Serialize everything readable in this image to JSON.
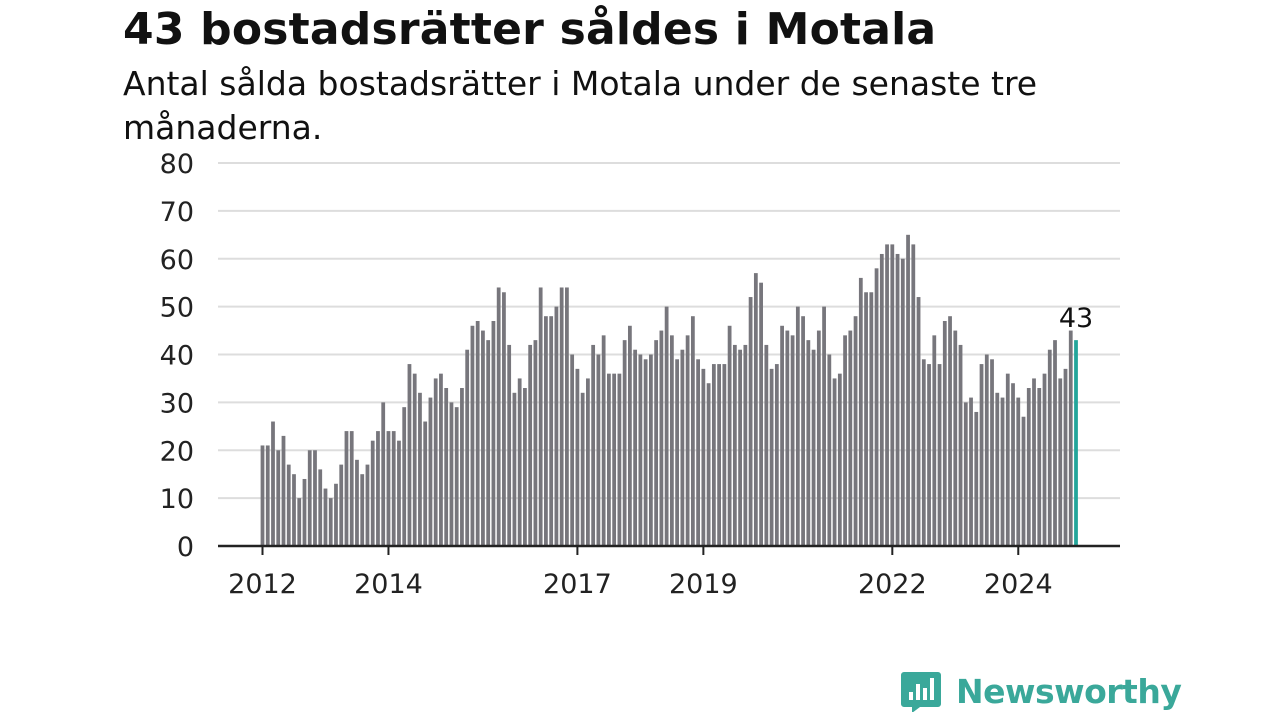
{
  "title": "43 bostadsrätter såldes i Motala",
  "subtitle": "Antal sålda bostadsrätter i Motala under de senaste tre månaderna.",
  "brand": {
    "name": "Newsworthy",
    "icon": "newsworthy-logo-icon",
    "color": "#3aa89a"
  },
  "chart_data": {
    "type": "bar",
    "title": "43 bostadsrätter såldes i Motala",
    "xlabel": "",
    "ylabel": "",
    "ylim": [
      0,
      80
    ],
    "yticks": [
      0,
      10,
      20,
      30,
      40,
      50,
      60,
      70,
      80
    ],
    "xtick_labels": [
      "2012",
      "2014",
      "2017",
      "2019",
      "2022",
      "2024"
    ],
    "grid": true,
    "colors": {
      "bars": "#77767c",
      "highlight": "#23a59a",
      "grid": "#dddddd",
      "axis": "#222222"
    },
    "highlight_label": "43",
    "series": [
      {
        "values": [
          21,
          21,
          26,
          20,
          23,
          17,
          15,
          10,
          14,
          20,
          20,
          16,
          12,
          10,
          13,
          17,
          24,
          24,
          18,
          15,
          17,
          22,
          24,
          30,
          24,
          24,
          22,
          29,
          38,
          36,
          32,
          26,
          31,
          35,
          36,
          33,
          30,
          29,
          33,
          41,
          46,
          47,
          45,
          43,
          47,
          54,
          53,
          42,
          32,
          35,
          33,
          42,
          43,
          54,
          48,
          48,
          50,
          54,
          54,
          40,
          37,
          32,
          35,
          42,
          40,
          44,
          36,
          36,
          36,
          43,
          46,
          41,
          40,
          39,
          40,
          43,
          45,
          50,
          44,
          39,
          41,
          44,
          48,
          39,
          37,
          34,
          38,
          38,
          38,
          46,
          42,
          41,
          42,
          52,
          57,
          55,
          42,
          37,
          38,
          46,
          45,
          44,
          50,
          48,
          43,
          41,
          45,
          50,
          40,
          35,
          36,
          44,
          45,
          48,
          56,
          53,
          53,
          58,
          61,
          63,
          63,
          61,
          60,
          65,
          63,
          52,
          39,
          38,
          44,
          38,
          47,
          48,
          45,
          42,
          30,
          31,
          28,
          38,
          40,
          39,
          32,
          31,
          36,
          34,
          31,
          27,
          33,
          35,
          33,
          36,
          41,
          43,
          35,
          37,
          45,
          43
        ]
      }
    ]
  }
}
